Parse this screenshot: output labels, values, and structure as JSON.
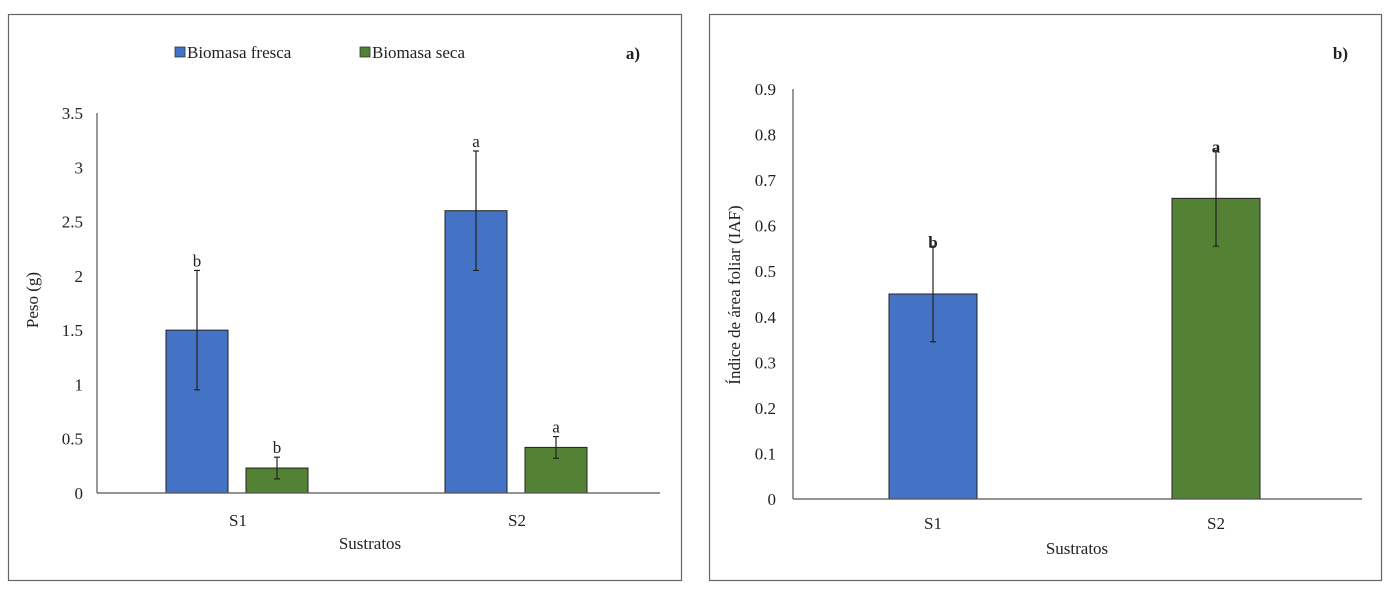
{
  "chart_data": [
    {
      "type": "bar",
      "panel_label": "a)",
      "categories": [
        "S1",
        "S2"
      ],
      "xlabel": "Sustratos",
      "ylabel": "Peso (g)",
      "ylim": [
        0,
        3.5
      ],
      "yticks": [
        "0",
        "0.5",
        "1",
        "1.5",
        "2",
        "2.5",
        "3",
        "3.5"
      ],
      "grid": false,
      "legend_position": "top",
      "series": [
        {
          "name": "Biomasa fresca",
          "color": "#4472C4",
          "values": [
            1.5,
            2.6
          ],
          "errors": [
            0.55,
            0.55
          ],
          "letters": [
            "b",
            "a"
          ]
        },
        {
          "name": "Biomasa seca",
          "color": "#548235",
          "values": [
            0.23,
            0.42
          ],
          "errors": [
            0.1,
            0.1
          ],
          "letters": [
            "b",
            "a"
          ]
        }
      ]
    },
    {
      "type": "bar",
      "panel_label": "b)",
      "categories": [
        "S1",
        "S2"
      ],
      "xlabel": "Sustratos",
      "ylabel": "Índice de área foliar (IAF)",
      "ylim": [
        0,
        0.9
      ],
      "yticks": [
        "0",
        "0.1",
        "0.2",
        "0.3",
        "0.4",
        "0.5",
        "0.6",
        "0.7",
        "0.8",
        "0.9"
      ],
      "grid": false,
      "values": [
        0.45,
        0.66
      ],
      "errors": [
        0.105,
        0.105
      ],
      "colors": [
        "#4472C4",
        "#548235"
      ],
      "letters": [
        "b",
        "a"
      ]
    }
  ]
}
